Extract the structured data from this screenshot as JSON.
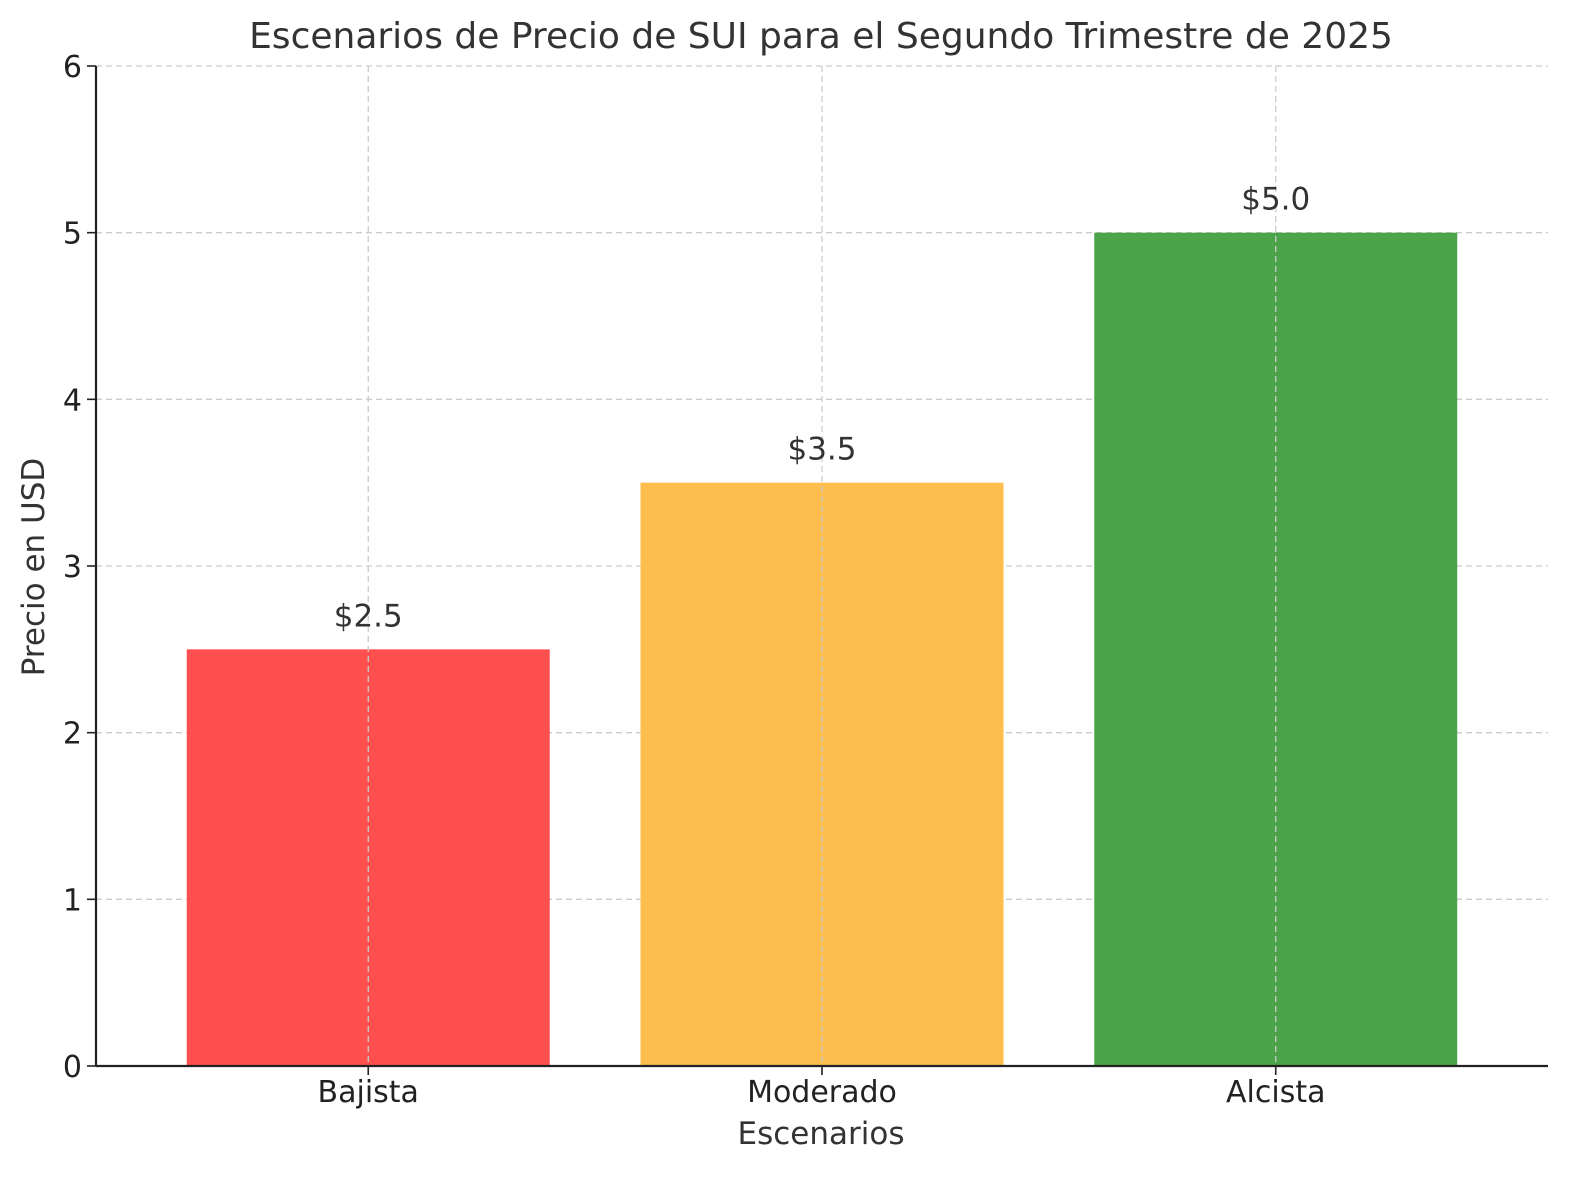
{
  "chart_data": {
    "type": "bar",
    "title": "Escenarios de Precio de SUI para el Segundo Trimestre de 2025",
    "xlabel": "Escenarios",
    "ylabel": "Precio en USD",
    "categories": [
      "Bajista",
      "Moderado",
      "Alcista"
    ],
    "values": [
      2.5,
      3.5,
      5.0
    ],
    "data_labels": [
      "$2.5",
      "$3.5",
      "$5.0"
    ],
    "colors": [
      "#ff4f4f",
      "#fdbe4e",
      "#4ba44a"
    ],
    "ylim": [
      0,
      6
    ],
    "yticks": [
      0,
      1,
      2,
      3,
      4,
      5,
      6
    ],
    "grid": true,
    "legend": "none"
  }
}
